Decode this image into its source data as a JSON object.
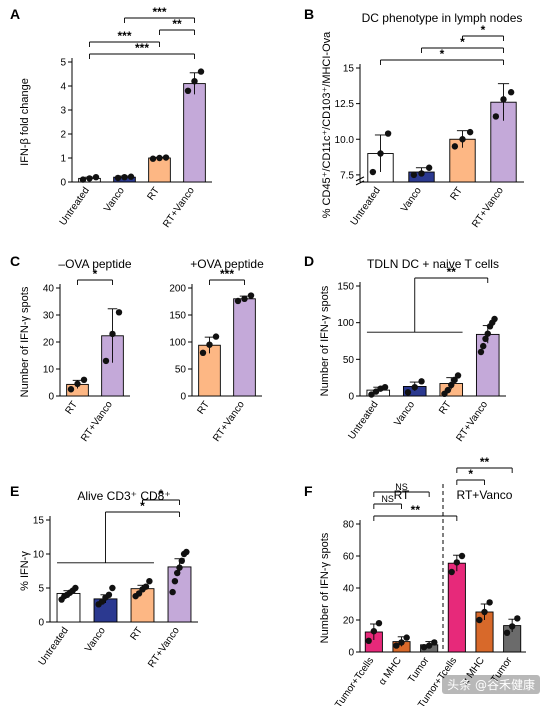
{
  "panel_letters": [
    "A",
    "B",
    "C",
    "D",
    "E",
    "F"
  ],
  "watermark": "头条 @谷禾健康",
  "colors": {
    "Untreated": "#ffffff",
    "Vanco": "#2b3990",
    "RT": "#fdb784",
    "RT+Vanco": "#c4a9d9",
    "Tumor+Tcells": "#e7297a",
    "αMHC": "#d8692a",
    "Tumor": "#6b6b6b"
  },
  "chart_data": [
    {
      "id": "A",
      "type": "bar",
      "title": "",
      "ylabel": "IFN-β fold change",
      "ylim": [
        0,
        5
      ],
      "yticks": [
        0,
        1,
        2,
        3,
        4,
        5
      ],
      "yticklabels": [
        "0",
        "1",
        "2",
        "3",
        "4",
        "5"
      ],
      "categories": [
        "Untreated",
        "Vanco",
        "RT",
        "RT+Vanco"
      ],
      "values": [
        0.15,
        0.2,
        1.0,
        4.1
      ],
      "errors": [
        0.05,
        0.05,
        0.03,
        0.45
      ],
      "points": [
        [
          0.1,
          0.15,
          0.2
        ],
        [
          0.17,
          0.2,
          0.22
        ],
        [
          0.97,
          1.0,
          1.02
        ],
        [
          3.8,
          4.2,
          4.6
        ]
      ],
      "sig": [
        {
          "from": 0,
          "to": 3,
          "label": "***"
        },
        {
          "from": 0,
          "to": 2,
          "label": "***"
        },
        {
          "from": 2,
          "to": 3,
          "label": "**"
        },
        {
          "from": 1,
          "to": 3,
          "label": "***"
        }
      ]
    },
    {
      "id": "B",
      "type": "bar",
      "title": "DC phenotype in lymph nodes",
      "ylabel": "% CD45⁺/CD11c⁺/CD103⁺/MHCI-Ova",
      "ylim": [
        7,
        15
      ],
      "ybreak_below": 7.5,
      "yticks": [
        7.5,
        10,
        12.5,
        15
      ],
      "yticklabels": [
        "7.5",
        "10.0",
        "12.5",
        "15"
      ],
      "categories": [
        "Untreated",
        "Vanco",
        "RT",
        "RT+Vanco"
      ],
      "values": [
        9.0,
        7.7,
        10.0,
        12.6
      ],
      "errors": [
        1.3,
        0.3,
        0.6,
        1.3
      ],
      "points": [
        [
          7.7,
          9.0,
          10.4
        ],
        [
          7.5,
          7.6,
          8.0
        ],
        [
          9.5,
          10.0,
          10.5
        ],
        [
          11.6,
          12.8,
          13.3
        ]
      ],
      "sig": [
        {
          "from": 0,
          "to": 3,
          "label": "*"
        },
        {
          "from": 1,
          "to": 3,
          "label": "*"
        },
        {
          "from": 2,
          "to": 3,
          "label": "*"
        }
      ]
    },
    {
      "id": "C1",
      "type": "bar",
      "title": "–OVA peptide",
      "ylabel": "Number of IFN-γ spots",
      "ylim": [
        0,
        40
      ],
      "yticks": [
        0,
        10,
        20,
        30,
        40
      ],
      "yticklabels": [
        "0",
        "10",
        "20",
        "30",
        "40"
      ],
      "categories": [
        "RT",
        "RT+Vanco"
      ],
      "values": [
        4.3,
        22.3
      ],
      "errors": [
        1.5,
        10.0
      ],
      "points": [
        [
          2.5,
          4.5,
          6.0
        ],
        [
          13.0,
          23.0,
          31.0
        ]
      ],
      "sig": [
        {
          "from": 0,
          "to": 1,
          "label": "*"
        }
      ]
    },
    {
      "id": "C2",
      "type": "bar",
      "title": "+OVA peptide",
      "ylabel": "",
      "ylim": [
        0,
        200
      ],
      "yticks": [
        0,
        50,
        100,
        150,
        200
      ],
      "yticklabels": [
        "0",
        "50",
        "100",
        "150",
        "200"
      ],
      "categories": [
        "RT",
        "RT+Vanco"
      ],
      "values": [
        94,
        180
      ],
      "errors": [
        15,
        5
      ],
      "points": [
        [
          80,
          95,
          110
        ],
        [
          176,
          180,
          186
        ]
      ],
      "sig": [
        {
          "from": 0,
          "to": 1,
          "label": "***"
        }
      ]
    },
    {
      "id": "D",
      "type": "bar",
      "title": "TDLN DC + naive T cells",
      "ylabel": "Number of IFN-γ spots",
      "ylim": [
        0,
        150
      ],
      "yticks": [
        0,
        50,
        100,
        150
      ],
      "yticklabels": [
        "0",
        "50",
        "100",
        "150"
      ],
      "categories": [
        "Untreated",
        "Vanco",
        "RT",
        "RT+Vanco"
      ],
      "values": [
        8,
        13,
        17,
        84
      ],
      "errors": [
        4,
        6,
        8,
        12
      ],
      "points": [
        [
          2,
          6,
          10,
          12
        ],
        [
          5,
          12,
          20
        ],
        [
          3,
          8,
          15,
          22,
          28
        ],
        [
          60,
          68,
          78,
          85,
          95,
          100,
          105
        ]
      ],
      "sig": [
        {
          "groupfrom": [
            0,
            2
          ],
          "to": 3,
          "label": "**"
        }
      ]
    },
    {
      "id": "E",
      "type": "bar",
      "title": "Alive CD3⁺ CD8⁺",
      "ylabel": "% IFN-γ",
      "ylim": [
        0,
        15
      ],
      "yticks": [
        0,
        5,
        10,
        15
      ],
      "yticklabels": [
        "0",
        "5",
        "10",
        "15"
      ],
      "categories": [
        "Untreated",
        "Vanco",
        "RT",
        "RT+Vanco"
      ],
      "values": [
        4.2,
        3.4,
        4.9,
        8.1
      ],
      "errors": [
        0.4,
        0.6,
        0.5,
        1.2
      ],
      "points": [
        [
          3.3,
          3.8,
          4.0,
          4.3,
          4.6,
          5.0
        ],
        [
          2.6,
          3.0,
          3.6,
          4.0,
          5.0
        ],
        [
          3.8,
          4.2,
          4.8,
          5.2,
          6.0
        ],
        [
          4.4,
          6.0,
          7.2,
          8.0,
          9.0,
          10.0,
          10.3
        ]
      ],
      "sig": [
        {
          "groupfrom": [
            0,
            2
          ],
          "to": 3,
          "label": "*"
        },
        {
          "from": 2,
          "to": 3,
          "label": "*"
        }
      ]
    },
    {
      "id": "F",
      "type": "bar",
      "title": "",
      "ylabel": "Number of IFN-γ spots",
      "ylim": [
        0,
        80
      ],
      "yticks": [
        0,
        20,
        40,
        60,
        80
      ],
      "yticklabels": [
        "0",
        "20",
        "40",
        "60",
        "80"
      ],
      "group_labels": [
        "RT",
        "RT+Vanco"
      ],
      "categories": [
        "Tumor+Tcells",
        "α MHC",
        "Tumor",
        "Tumor+Tcells",
        "α MHC",
        "Tumor"
      ],
      "values": [
        12.5,
        6.5,
        4.5,
        55.5,
        25,
        16.5
      ],
      "errors": [
        5,
        3,
        2,
        5,
        5,
        4
      ],
      "points": [
        [
          7,
          13,
          18
        ],
        [
          4,
          6,
          9
        ],
        [
          3,
          4,
          6
        ],
        [
          50,
          56,
          60
        ],
        [
          20,
          25,
          31
        ],
        [
          12,
          16,
          21
        ]
      ],
      "series_color": [
        "Tumor+Tcells",
        "αMHC",
        "Tumor",
        "Tumor+Tcells",
        "αMHC",
        "Tumor"
      ],
      "sig": [
        {
          "from": 0,
          "to": 3,
          "label": "**"
        },
        {
          "from": 0,
          "to": 1,
          "label": "NS"
        },
        {
          "from": 0,
          "to": 2,
          "label": "NS"
        },
        {
          "from": 3,
          "to": 4,
          "label": "*"
        },
        {
          "from": 3,
          "to": 5,
          "label": "**"
        }
      ]
    }
  ]
}
